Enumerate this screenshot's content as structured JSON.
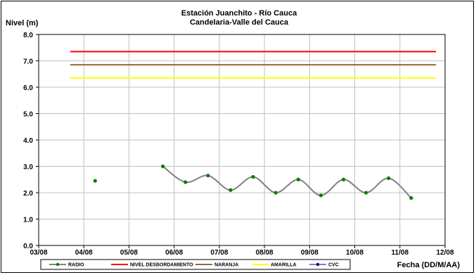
{
  "chart_data": {
    "type": "line",
    "title": "Estación Juanchito - Río Cauca",
    "subtitle": "Candelaria-Valle del Cauca",
    "ylabel": "Nivel (m)",
    "xlabel": "Fecha (DD/M/AA)",
    "ylim": [
      0,
      8
    ],
    "y_ticks": [
      "0.0",
      "1.0",
      "2.0",
      "3.0",
      "4.0",
      "5.0",
      "6.0",
      "7.0",
      "8.0"
    ],
    "x_ticks": [
      "03/08",
      "04/08",
      "05/08",
      "06/08",
      "07/08",
      "08/08",
      "09/08",
      "10/08",
      "11/08",
      "12/08"
    ],
    "grid": true,
    "legend_position": "bottom",
    "series": [
      {
        "name": "RADIO",
        "color": "#808080",
        "marker_color": "#008000",
        "x_day_index": [
          1.25,
          2.75,
          3.25,
          3.75,
          4.25,
          4.75,
          5.25,
          5.75,
          6.25,
          6.75,
          7.25,
          7.75,
          8.25
        ],
        "values": [
          2.45,
          3.0,
          2.4,
          2.65,
          2.1,
          2.6,
          2.0,
          2.5,
          1.9,
          2.5,
          2.0,
          2.55,
          1.8
        ]
      },
      {
        "name": "NIVEL DESBORDAMIENTO",
        "color": "#ff0000",
        "values": [
          7.35
        ]
      },
      {
        "name": "NARANJA",
        "color": "#996633",
        "values": [
          6.85
        ]
      },
      {
        "name": "AMARILLA",
        "color": "#ffff00",
        "values": [
          6.35
        ]
      },
      {
        "name": "CVC",
        "color": "#000080",
        "values": []
      }
    ]
  }
}
